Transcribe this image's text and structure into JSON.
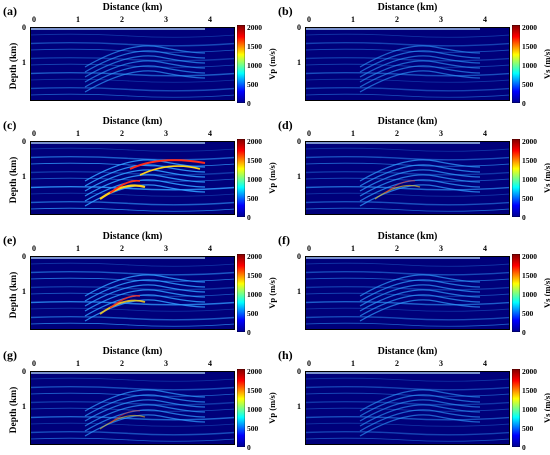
{
  "figure": {
    "panels": [
      {
        "label": "(a)",
        "x_axis_label": "Distance (km)",
        "y_axis_label": "Depth (km)",
        "colorbar_label": "Vp (m/s)",
        "intensity": 0.45
      },
      {
        "label": "(b)",
        "x_axis_label": "Distance (km)",
        "y_axis_label": "",
        "colorbar_label": "Vs (m/s)",
        "intensity": 0.3
      },
      {
        "label": "(c)",
        "x_axis_label": "Distance (km)",
        "y_axis_label": "Depth (km)",
        "colorbar_label": "Vp (m/s)",
        "intensity": 1.0
      },
      {
        "label": "(d)",
        "x_axis_label": "Distance (km)",
        "y_axis_label": "",
        "colorbar_label": "Vs (m/s)",
        "intensity": 0.6
      },
      {
        "label": "(e)",
        "x_axis_label": "Distance (km)",
        "y_axis_label": "Depth (km)",
        "colorbar_label": "Vp (m/s)",
        "intensity": 0.85
      },
      {
        "label": "(f)",
        "x_axis_label": "Distance (km)",
        "y_axis_label": "",
        "colorbar_label": "Vs (m/s)",
        "intensity": 0.5
      },
      {
        "label": "(g)",
        "x_axis_label": "Distance (km)",
        "y_axis_label": "Depth (km)",
        "colorbar_label": "Vp (m/s)",
        "intensity": 0.55
      },
      {
        "label": "(h)",
        "x_axis_label": "Distance (km)",
        "y_axis_label": "",
        "colorbar_label": "Vs (m/s)",
        "intensity": 0.3
      }
    ],
    "x_ticks": [
      "0",
      "1",
      "2",
      "3",
      "4"
    ],
    "y_ticks": [
      "0",
      "1"
    ],
    "colorbar_ticks": [
      "2000",
      "1500",
      "1000",
      "500",
      "0"
    ],
    "colors": {
      "bg": "#00007a",
      "wave": "#2f9cff",
      "hot": "#ff2a1a",
      "warm": "#ffd21a"
    }
  }
}
